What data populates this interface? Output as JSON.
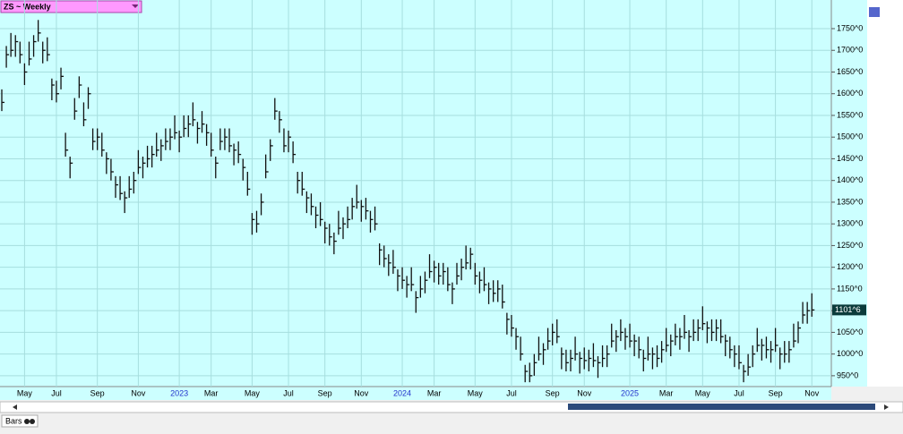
{
  "header": {
    "title": "ZS ~ Weekly"
  },
  "footer": {
    "mode": "Bars"
  },
  "chart_data": {
    "type": "ohlc",
    "color": "#111111",
    "grid": true,
    "last_price": {
      "value": 1101.6,
      "label": "1101^6"
    },
    "ylim": [
      925,
      1816
    ],
    "yticks": [
      {
        "value": 950,
        "label": "950^0"
      },
      {
        "value": 1000,
        "label": "1000^0"
      },
      {
        "value": 1050,
        "label": "1050^0"
      },
      {
        "value": 1100,
        "label": "1100^0"
      },
      {
        "value": 1150,
        "label": "1150^0"
      },
      {
        "value": 1200,
        "label": "1200^0"
      },
      {
        "value": 1250,
        "label": "1250^0"
      },
      {
        "value": 1300,
        "label": "1300^0"
      },
      {
        "value": 1350,
        "label": "1350^0"
      },
      {
        "value": 1400,
        "label": "1400^0"
      },
      {
        "value": 1450,
        "label": "1450^0"
      },
      {
        "value": 1500,
        "label": "1500^0"
      },
      {
        "value": 1550,
        "label": "1550^0"
      },
      {
        "value": 1600,
        "label": "1600^0"
      },
      {
        "value": 1650,
        "label": "1650^0"
      },
      {
        "value": 1700,
        "label": "1700^0"
      },
      {
        "value": 1750,
        "label": "1750^0"
      }
    ],
    "categories": [
      null,
      null,
      null,
      null,
      null,
      "May",
      null,
      null,
      null,
      null,
      null,
      null,
      "Jul",
      null,
      null,
      null,
      null,
      null,
      null,
      null,
      null,
      "Sep",
      null,
      null,
      null,
      null,
      null,
      null,
      null,
      null,
      "Nov",
      null,
      null,
      null,
      null,
      null,
      null,
      null,
      null,
      "2023",
      null,
      null,
      null,
      null,
      null,
      null,
      "Mar",
      null,
      null,
      null,
      null,
      null,
      null,
      null,
      null,
      "May",
      null,
      null,
      null,
      null,
      null,
      null,
      null,
      "Jul",
      null,
      null,
      null,
      null,
      null,
      null,
      null,
      "Sep",
      null,
      null,
      null,
      null,
      null,
      null,
      null,
      "Nov",
      null,
      null,
      null,
      null,
      null,
      null,
      null,
      null,
      "2024",
      null,
      null,
      null,
      null,
      null,
      null,
      "Mar",
      null,
      null,
      null,
      null,
      null,
      null,
      null,
      null,
      "May",
      null,
      null,
      null,
      null,
      null,
      null,
      null,
      "Jul",
      null,
      null,
      null,
      null,
      null,
      null,
      null,
      null,
      "Sep",
      null,
      null,
      null,
      null,
      null,
      null,
      "Nov",
      null,
      null,
      null,
      null,
      null,
      null,
      null,
      null,
      null,
      "2025",
      null,
      null,
      null,
      null,
      null,
      null,
      null,
      "Mar",
      null,
      null,
      null,
      null,
      null,
      null,
      null,
      "May",
      null,
      null,
      null,
      null,
      null,
      null,
      null,
      "Jul",
      null,
      null,
      null,
      null,
      null,
      null,
      null,
      "Sep",
      null,
      null,
      null,
      null,
      null,
      null,
      null,
      "Nov"
    ],
    "hlc": [
      [
        1610,
        1560,
        1580
      ],
      [
        1710,
        1660,
        1690
      ],
      [
        1740,
        1685,
        1700
      ],
      [
        1735,
        1685,
        1720
      ],
      [
        1720,
        1670,
        1690
      ],
      [
        1670,
        1620,
        1650
      ],
      [
        1720,
        1665,
        1680
      ],
      [
        1735,
        1685,
        1720
      ],
      [
        1770,
        1720,
        1740
      ],
      [
        1720,
        1670,
        1700
      ],
      [
        1730,
        1675,
        1690
      ],
      [
        1635,
        1585,
        1620
      ],
      [
        1630,
        1580,
        1600
      ],
      [
        1660,
        1610,
        1640
      ],
      [
        1510,
        1455,
        1470
      ],
      [
        1455,
        1405,
        1440
      ],
      [
        1590,
        1540,
        1560
      ],
      [
        1640,
        1590,
        1620
      ],
      [
        1580,
        1525,
        1540
      ],
      [
        1615,
        1565,
        1600
      ],
      [
        1520,
        1470,
        1490
      ],
      [
        1520,
        1470,
        1500
      ],
      [
        1510,
        1455,
        1470
      ],
      [
        1465,
        1415,
        1450
      ],
      [
        1450,
        1400,
        1420
      ],
      [
        1410,
        1360,
        1390
      ],
      [
        1410,
        1355,
        1370
      ],
      [
        1375,
        1325,
        1360
      ],
      [
        1410,
        1360,
        1380
      ],
      [
        1420,
        1370,
        1400
      ],
      [
        1470,
        1415,
        1430
      ],
      [
        1455,
        1405,
        1440
      ],
      [
        1480,
        1430,
        1450
      ],
      [
        1480,
        1430,
        1460
      ],
      [
        1510,
        1455,
        1470
      ],
      [
        1495,
        1445,
        1480
      ],
      [
        1520,
        1470,
        1490
      ],
      [
        1520,
        1470,
        1500
      ],
      [
        1550,
        1495,
        1510
      ],
      [
        1515,
        1465,
        1500
      ],
      [
        1550,
        1500,
        1520
      ],
      [
        1550,
        1500,
        1530
      ],
      [
        1580,
        1525,
        1540
      ],
      [
        1535,
        1485,
        1520
      ],
      [
        1560,
        1510,
        1530
      ],
      [
        1530,
        1480,
        1510
      ],
      [
        1510,
        1455,
        1470
      ],
      [
        1455,
        1405,
        1440
      ],
      [
        1520,
        1470,
        1490
      ],
      [
        1520,
        1470,
        1500
      ],
      [
        1520,
        1465,
        1480
      ],
      [
        1485,
        1435,
        1470
      ],
      [
        1490,
        1440,
        1460
      ],
      [
        1450,
        1400,
        1430
      ],
      [
        1420,
        1365,
        1380
      ],
      [
        1325,
        1275,
        1310
      ],
      [
        1330,
        1280,
        1300
      ],
      [
        1370,
        1320,
        1350
      ],
      [
        1460,
        1405,
        1420
      ],
      [
        1495,
        1445,
        1480
      ],
      [
        1590,
        1540,
        1560
      ],
      [
        1560,
        1510,
        1540
      ],
      [
        1520,
        1465,
        1480
      ],
      [
        1515,
        1465,
        1500
      ],
      [
        1490,
        1440,
        1460
      ],
      [
        1420,
        1370,
        1400
      ],
      [
        1420,
        1365,
        1380
      ],
      [
        1375,
        1325,
        1360
      ],
      [
        1370,
        1320,
        1340
      ],
      [
        1340,
        1290,
        1320
      ],
      [
        1350,
        1295,
        1310
      ],
      [
        1305,
        1255,
        1290
      ],
      [
        1300,
        1250,
        1270
      ],
      [
        1280,
        1230,
        1260
      ],
      [
        1330,
        1275,
        1290
      ],
      [
        1315,
        1265,
        1300
      ],
      [
        1340,
        1290,
        1310
      ],
      [
        1360,
        1310,
        1340
      ],
      [
        1390,
        1335,
        1350
      ],
      [
        1355,
        1305,
        1340
      ],
      [
        1360,
        1310,
        1330
      ],
      [
        1330,
        1280,
        1310
      ],
      [
        1340,
        1285,
        1300
      ],
      [
        1255,
        1205,
        1240
      ],
      [
        1250,
        1200,
        1220
      ],
      [
        1230,
        1180,
        1210
      ],
      [
        1240,
        1185,
        1200
      ],
      [
        1195,
        1145,
        1180
      ],
      [
        1200,
        1150,
        1170
      ],
      [
        1180,
        1130,
        1160
      ],
      [
        1200,
        1145,
        1160
      ],
      [
        1145,
        1095,
        1130
      ],
      [
        1180,
        1130,
        1150
      ],
      [
        1190,
        1140,
        1170
      ],
      [
        1230,
        1175,
        1190
      ],
      [
        1215,
        1165,
        1200
      ],
      [
        1210,
        1160,
        1180
      ],
      [
        1210,
        1160,
        1190
      ],
      [
        1200,
        1145,
        1160
      ],
      [
        1165,
        1115,
        1150
      ],
      [
        1210,
        1160,
        1180
      ],
      [
        1220,
        1170,
        1200
      ],
      [
        1250,
        1195,
        1210
      ],
      [
        1245,
        1195,
        1230
      ],
      [
        1210,
        1160,
        1180
      ],
      [
        1190,
        1140,
        1170
      ],
      [
        1200,
        1145,
        1160
      ],
      [
        1165,
        1115,
        1150
      ],
      [
        1170,
        1120,
        1140
      ],
      [
        1170,
        1120,
        1150
      ],
      [
        1160,
        1105,
        1120
      ],
      [
        1095,
        1045,
        1080
      ],
      [
        1090,
        1040,
        1060
      ],
      [
        1060,
        1010,
        1040
      ],
      [
        1040,
        985,
        1000
      ],
      [
        975,
        935,
        960
      ],
      [
        980,
        935,
        950
      ],
      [
        1000,
        950,
        980
      ],
      [
        1040,
        985,
        1000
      ],
      [
        1025,
        975,
        1010
      ],
      [
        1060,
        1010,
        1030
      ],
      [
        1070,
        1020,
        1050
      ],
      [
        1080,
        1025,
        1040
      ],
      [
        1015,
        965,
        1000
      ],
      [
        1010,
        960,
        980
      ],
      [
        1010,
        960,
        990
      ],
      [
        1040,
        985,
        1000
      ],
      [
        1005,
        955,
        990
      ],
      [
        1015,
        965,
        985
      ],
      [
        1010,
        960,
        990
      ],
      [
        1025,
        970,
        985
      ],
      [
        995,
        945,
        980
      ],
      [
        1020,
        970,
        990
      ],
      [
        1020,
        970,
        1000
      ],
      [
        1070,
        1015,
        1030
      ],
      [
        1055,
        1005,
        1040
      ],
      [
        1080,
        1030,
        1050
      ],
      [
        1060,
        1010,
        1040
      ],
      [
        1070,
        1015,
        1030
      ],
      [
        1045,
        995,
        1030
      ],
      [
        1040,
        990,
        1010
      ],
      [
        1010,
        960,
        990
      ],
      [
        1040,
        985,
        1000
      ],
      [
        1015,
        965,
        1000
      ],
      [
        1020,
        970,
        990
      ],
      [
        1030,
        980,
        1010
      ],
      [
        1060,
        1005,
        1020
      ],
      [
        1045,
        995,
        1030
      ],
      [
        1070,
        1020,
        1040
      ],
      [
        1060,
        1010,
        1040
      ],
      [
        1090,
        1035,
        1050
      ],
      [
        1055,
        1005,
        1040
      ],
      [
        1080,
        1030,
        1050
      ],
      [
        1080,
        1030,
        1060
      ],
      [
        1110,
        1055,
        1070
      ],
      [
        1075,
        1025,
        1060
      ],
      [
        1080,
        1030,
        1050
      ],
      [
        1080,
        1030,
        1060
      ],
      [
        1080,
        1025,
        1040
      ],
      [
        1045,
        995,
        1030
      ],
      [
        1040,
        990,
        1010
      ],
      [
        1020,
        970,
        1000
      ],
      [
        1020,
        965,
        980
      ],
      [
        975,
        935,
        960
      ],
      [
        1000,
        950,
        970
      ],
      [
        1020,
        970,
        1000
      ],
      [
        1060,
        1005,
        1020
      ],
      [
        1035,
        985,
        1020
      ],
      [
        1040,
        990,
        1010
      ],
      [
        1030,
        980,
        1010
      ],
      [
        1060,
        1005,
        1020
      ],
      [
        1015,
        965,
        1000
      ],
      [
        1030,
        980,
        1000
      ],
      [
        1030,
        980,
        1010
      ],
      [
        1070,
        1015,
        1030
      ],
      [
        1075,
        1025,
        1060
      ],
      [
        1120,
        1070,
        1090
      ],
      [
        1120,
        1070,
        1100
      ],
      [
        1140,
        1086,
        1101.6
      ]
    ]
  }
}
